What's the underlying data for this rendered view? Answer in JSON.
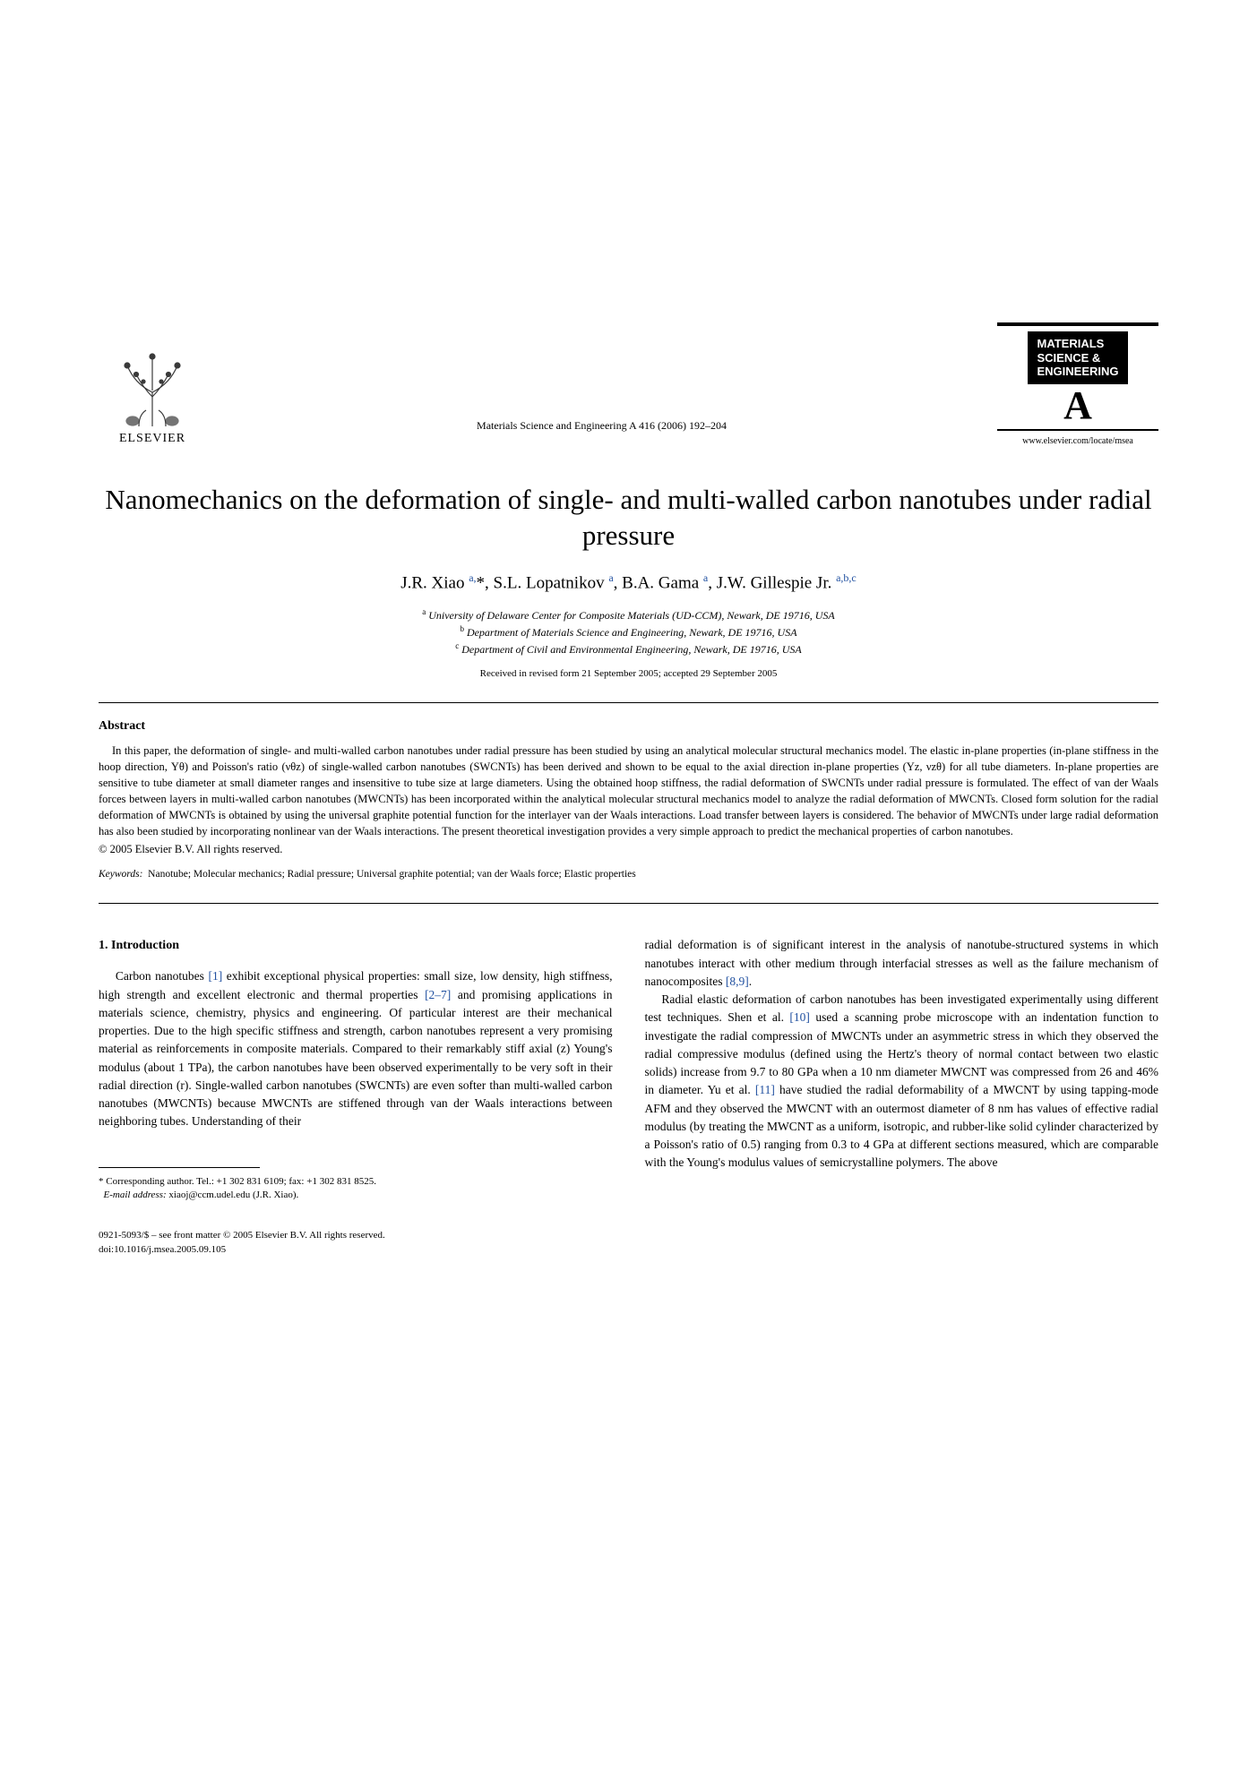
{
  "publisher": {
    "name": "ELSEVIER",
    "tree_stroke": "#3a3a3a"
  },
  "journal_ref": "Materials Science and Engineering A 416 (2006) 192–204",
  "journal_logo": {
    "line1": "MATERIALS",
    "line2": "SCIENCE &",
    "line3": "ENGINEERING",
    "letter": "A",
    "url": "www.elsevier.com/locate/msea"
  },
  "title": "Nanomechanics on the deformation of single- and multi-walled carbon nanotubes under radial pressure",
  "authors_html": "J.R. Xiao <sup>a,</sup><span class='ast'>*</span>, S.L. Lopatnikov <sup>a</sup>, B.A. Gama <sup>a</sup>, J.W. Gillespie Jr. <sup>a,b,c</sup>",
  "affiliations": {
    "a": "University of Delaware Center for Composite Materials (UD-CCM), Newark, DE 19716, USA",
    "b": "Department of Materials Science and Engineering, Newark, DE 19716, USA",
    "c": "Department of Civil and Environmental Engineering, Newark, DE 19716, USA"
  },
  "dates": "Received in revised form 21 September 2005; accepted 29 September 2005",
  "abstract": {
    "heading": "Abstract",
    "body": "In this paper, the deformation of single- and multi-walled carbon nanotubes under radial pressure has been studied by using an analytical molecular structural mechanics model. The elastic in-plane properties (in-plane stiffness in the hoop direction, Yθ) and Poisson's ratio (νθz) of single-walled carbon nanotubes (SWCNTs) has been derived and shown to be equal to the axial direction in-plane properties (Yz, νzθ) for all tube diameters. In-plane properties are sensitive to tube diameter at small diameter ranges and insensitive to tube size at large diameters. Using the obtained hoop stiffness, the radial deformation of SWCNTs under radial pressure is formulated. The effect of van der Waals forces between layers in multi-walled carbon nanotubes (MWCNTs) has been incorporated within the analytical molecular structural mechanics model to analyze the radial deformation of MWCNTs. Closed form solution for the radial deformation of MWCNTs is obtained by using the universal graphite potential function for the interlayer van der Waals interactions. Load transfer between layers is considered. The behavior of MWCNTs under large radial deformation has also been studied by incorporating nonlinear van der Waals interactions. The present theoretical investigation provides a very simple approach to predict the mechanical properties of carbon nanotubes.",
    "copyright": "© 2005 Elsevier B.V. All rights reserved."
  },
  "keywords": {
    "label": "Keywords:",
    "list": "Nanotube; Molecular mechanics; Radial pressure; Universal graphite potential; van der Waals force; Elastic properties"
  },
  "section1": {
    "heading": "1. Introduction",
    "col1_p1_pre": "Carbon nanotubes ",
    "ref1": "[1]",
    "col1_p1_mid": " exhibit exceptional physical properties: small size, low density, high stiffness, high strength and excellent electronic and thermal properties ",
    "ref2": "[2–7]",
    "col1_p1_post": " and promising applications in materials science, chemistry, physics and engineering. Of particular interest are their mechanical properties. Due to the high specific stiffness and strength, carbon nanotubes represent a very promising material as reinforcements in composite materials. Compared to their remarkably stiff axial (z) Young's modulus (about 1 TPa), the carbon nanotubes have been observed experimentally to be very soft in their radial direction (r). Single-walled carbon nanotubes (SWCNTs) are even softer than multi-walled carbon nanotubes (MWCNTs) because MWCNTs are stiffened through van der Waals interactions between neighboring tubes. Understanding of their",
    "col2_p1_pre": "radial deformation is of significant interest in the analysis of nanotube-structured systems in which nanotubes interact with other medium through interfacial stresses as well as the failure mechanism of nanocomposites ",
    "ref89": "[8,9]",
    "col2_p1_post": ".",
    "col2_p2_pre": "Radial elastic deformation of carbon nanotubes has been investigated experimentally using different test techniques. Shen et al. ",
    "ref10": "[10]",
    "col2_p2_mid": " used a scanning probe microscope with an indentation function to investigate the radial compression of MWCNTs under an asymmetric stress in which they observed the radial compressive modulus (defined using the Hertz's theory of normal contact between two elastic solids) increase from 9.7 to 80 GPa when a 10 nm diameter MWCNT was compressed from 26 and 46% in diameter. Yu et al. ",
    "ref11": "[11]",
    "col2_p2_post": " have studied the radial deformability of a MWCNT by using tapping-mode AFM and they observed the MWCNT with an outermost diameter of 8 nm has values of effective radial modulus (by treating the MWCNT as a uniform, isotropic, and rubber-like solid cylinder characterized by a Poisson's ratio of 0.5) ranging from 0.3 to 4 GPa at different sections measured, which are comparable with the Young's modulus values of semicrystalline polymers. The above"
  },
  "footnote": {
    "corr": "Corresponding author. Tel.: +1 302 831 6109; fax: +1 302 831 8525.",
    "email_label": "E-mail address:",
    "email": "xiaoj@ccm.udel.edu (J.R. Xiao)."
  },
  "footer": {
    "issn": "0921-5093/$ – see front matter © 2005 Elsevier B.V. All rights reserved.",
    "doi": "doi:10.1016/j.msea.2005.09.105"
  },
  "colors": {
    "link": "#2050a0",
    "text": "#000000",
    "bg": "#ffffff"
  },
  "typography": {
    "title_pt": 31,
    "authors_pt": 19,
    "body_pt": 13.5,
    "abstract_pt": 12.5,
    "footnote_pt": 11
  }
}
